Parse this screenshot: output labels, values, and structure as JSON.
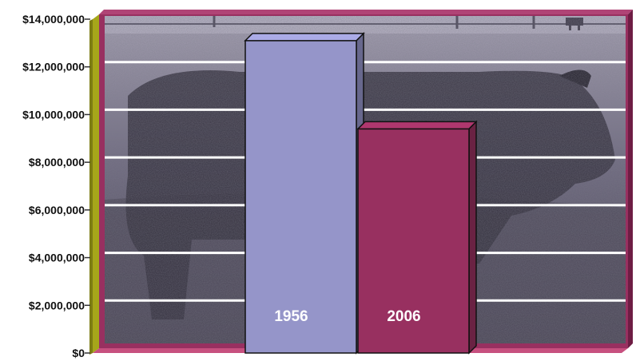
{
  "chart_data": {
    "type": "bar",
    "categories": [
      "1956",
      "2006"
    ],
    "values": [
      12900000,
      9200000
    ],
    "ylim": [
      0,
      14000000
    ],
    "yticks": [
      0,
      2000000,
      4000000,
      6000000,
      8000000,
      10000000,
      12000000,
      14000000
    ],
    "ytick_labels": [
      "$0",
      "$2,000,000",
      "$4,000,000",
      "$6,000,000",
      "$8,000,000",
      "$10,000,000",
      "$12,000,000",
      "$14,000,000"
    ],
    "grid": true,
    "bar_colors": [
      "#9595c9",
      "#983060"
    ],
    "background": "photo of a cow in a pasture (monochrome)",
    "frame_color": "#983060",
    "floor_color": "#c7507f",
    "wall_color": "#a6a61a"
  }
}
